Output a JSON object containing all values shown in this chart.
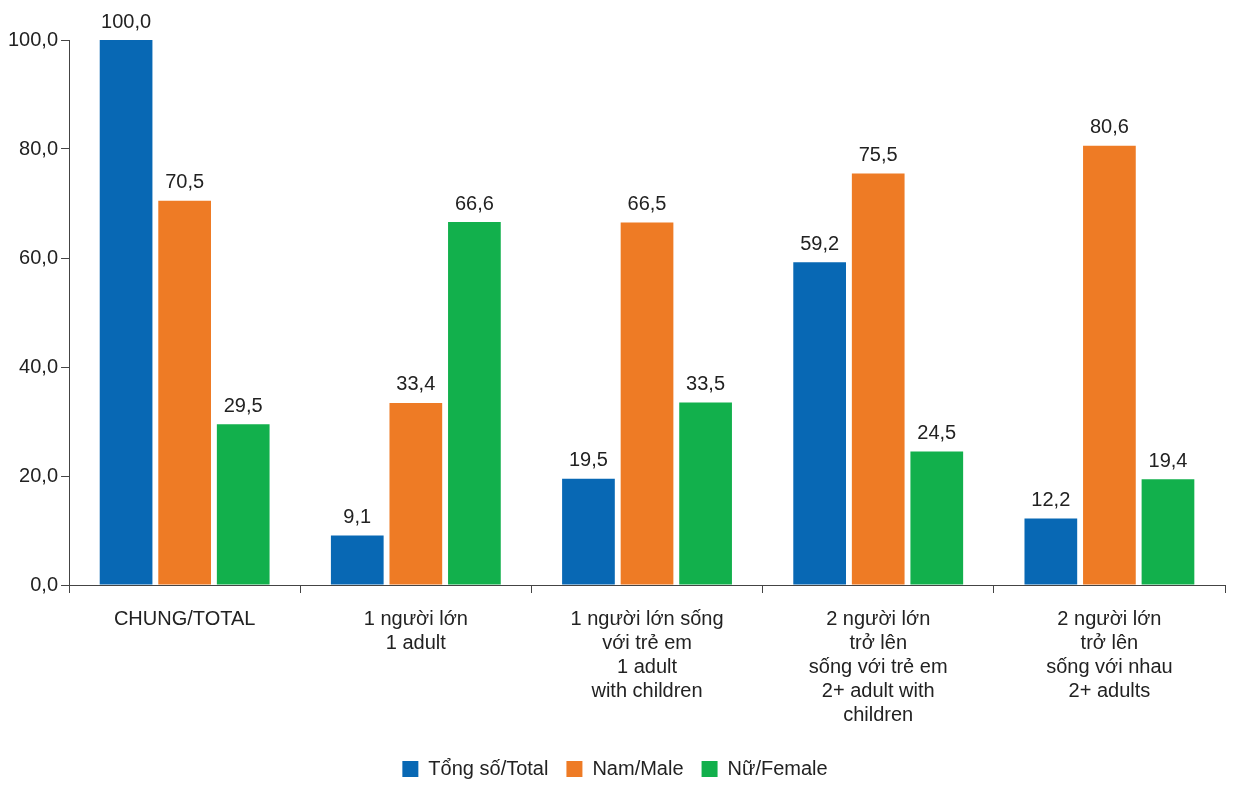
{
  "chart_data": {
    "type": "bar",
    "categories": [
      "CHUNG/TOTAL",
      "1 người lớn\n1 adult",
      "1 người lớn sống\nvới trẻ em\n1 adult\nwith children",
      "2 người lớn\ntrở lên\nsống với trẻ em\n2+ adult with\nchildren",
      "2 người lớn\ntrở lên\nsống với nhau\n2+ adults"
    ],
    "series": [
      {
        "name": "Tổng số/Total",
        "color": "#0868b4",
        "values": [
          100.0,
          9.1,
          19.5,
          59.2,
          12.2
        ],
        "value_labels": [
          "100,0",
          "9,1",
          "19,5",
          "59,2",
          "12,2"
        ]
      },
      {
        "name": "Nam/Male",
        "color": "#ee7b25",
        "values": [
          70.5,
          33.4,
          66.5,
          75.5,
          80.6
        ],
        "value_labels": [
          "70,5",
          "33,4",
          "66,5",
          "75,5",
          "80,6"
        ]
      },
      {
        "name": "Nữ/Female",
        "color": "#12b04c",
        "values": [
          29.5,
          66.6,
          33.5,
          24.5,
          19.4
        ],
        "value_labels": [
          "29,5",
          "66,6",
          "33,5",
          "24,5",
          "19,4"
        ]
      }
    ],
    "ylim": [
      0,
      100
    ],
    "yticks": [
      {
        "value": 0,
        "label": "0,0"
      },
      {
        "value": 20,
        "label": "20,0"
      },
      {
        "value": 40,
        "label": "40,0"
      },
      {
        "value": 60,
        "label": "60,0"
      },
      {
        "value": 80,
        "label": "80,0"
      },
      {
        "value": 100,
        "label": "100,0"
      }
    ],
    "grid": false,
    "legend": "bottom"
  }
}
